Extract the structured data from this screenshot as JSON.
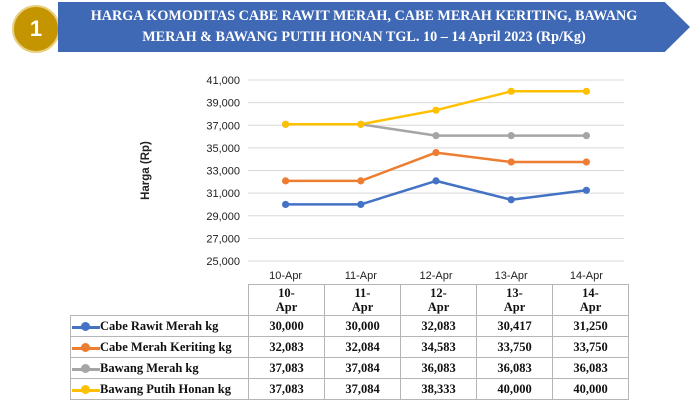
{
  "badge": "1",
  "title_line1": "HARGA KOMODITAS CABE RAWIT MERAH, CABE MERAH KERITING, BAWANG",
  "title_line2": "MERAH & BAWANG PUTIH HONAN  TGL. 10 – 14 April 2023 (Rp/Kg)",
  "chart_data": {
    "type": "line",
    "title": "HARGA KOMODITAS CABE RAWIT MERAH, CABE MERAH KERITING, BAWANG MERAH & BAWANG PUTIH HONAN  TGL. 10 – 14 April 2023 (Rp/Kg)",
    "xlabel": "",
    "ylabel": "Harga (Rp)",
    "ylim": [
      25000,
      41000
    ],
    "yticks": [
      "25,000",
      "27,000",
      "29,000",
      "31,000",
      "33,000",
      "35,000",
      "37,000",
      "39,000",
      "41,000"
    ],
    "grid": true,
    "legend": "data-table",
    "categories": [
      "10-Apr",
      "11-Apr",
      "12-Apr",
      "13-Apr",
      "14-Apr"
    ],
    "table_headers": [
      [
        "10-",
        "Apr"
      ],
      [
        "11-",
        "Apr"
      ],
      [
        "12-",
        "Apr"
      ],
      [
        "13-",
        "Apr"
      ],
      [
        "14-",
        "Apr"
      ]
    ],
    "series": [
      {
        "name": "Cabe Rawit Merah kg",
        "color": "#4472c4",
        "values": [
          30000,
          30000,
          32083,
          30417,
          31250
        ],
        "labels": [
          "30,000",
          "30,000",
          "32,083",
          "30,417",
          "31,250"
        ]
      },
      {
        "name": "Cabe Merah Keriting kg",
        "color": "#ed7d31",
        "values": [
          32083,
          32084,
          34583,
          33750,
          33750
        ],
        "labels": [
          "32,083",
          "32,084",
          "34,583",
          "33,750",
          "33,750"
        ]
      },
      {
        "name": "Bawang Merah kg",
        "color": "#a5a5a5",
        "values": [
          37083,
          37084,
          36083,
          36083,
          36083
        ],
        "labels": [
          "37,083",
          "37,084",
          "36,083",
          "36,083",
          "36,083"
        ]
      },
      {
        "name": "Bawang Putih Honan kg",
        "color": "#ffc000",
        "values": [
          37083,
          37084,
          38333,
          40000,
          40000
        ],
        "labels": [
          "37,083",
          "37,084",
          "38,333",
          "40,000",
          "40,000"
        ]
      }
    ]
  }
}
